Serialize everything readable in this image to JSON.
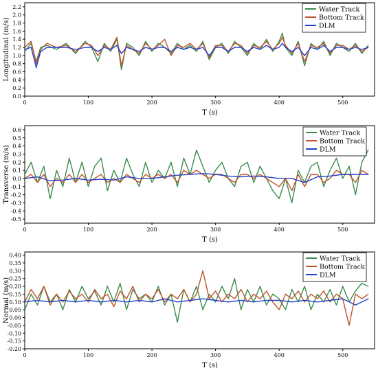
{
  "chart_data": [
    {
      "type": "line",
      "xlabel": "T (s)",
      "ylabel": "Longitudinal (m/s)",
      "xlim": [
        0,
        550
      ],
      "ylim": [
        0,
        2.3
      ],
      "xticks": [
        0,
        100,
        200,
        300,
        400,
        500
      ],
      "yticks": [
        0.0,
        0.2,
        0.4,
        0.6,
        0.8,
        1.0,
        1.2,
        1.4,
        1.6,
        1.8,
        2.0,
        2.2
      ],
      "ytick_labels": [
        "0.0",
        "0.2",
        "0.4",
        "0.6",
        "0.8",
        "1.0",
        "1.2",
        "1.4",
        "1.6",
        "1.8",
        "2.0",
        "2.2"
      ],
      "legend_position": "top-right",
      "series": [
        {
          "name": "Water Track",
          "color": "#3a8b4a",
          "x": [
            0,
            10,
            18,
            25,
            35,
            50,
            65,
            80,
            95,
            105,
            115,
            125,
            135,
            145,
            152,
            160,
            170,
            180,
            190,
            200,
            210,
            220,
            230,
            240,
            250,
            260,
            270,
            280,
            290,
            300,
            310,
            320,
            330,
            340,
            350,
            360,
            370,
            380,
            390,
            400,
            405,
            410,
            420,
            430,
            440,
            450,
            460,
            470,
            480,
            490,
            500,
            510,
            520,
            530,
            540
          ],
          "y": [
            1.1,
            1.3,
            0.85,
            1.2,
            1.25,
            1.15,
            1.3,
            1.05,
            1.35,
            1.2,
            0.85,
            1.3,
            1.1,
            1.4,
            0.65,
            1.3,
            1.2,
            1.0,
            1.35,
            1.1,
            1.3,
            1.2,
            1.05,
            1.3,
            1.15,
            1.25,
            1.1,
            1.35,
            0.9,
            1.2,
            1.3,
            1.05,
            1.35,
            1.2,
            1.0,
            1.3,
            1.15,
            1.4,
            1.1,
            1.35,
            1.55,
            1.2,
            1.0,
            1.35,
            0.75,
            1.3,
            1.15,
            1.35,
            1.0,
            1.3,
            1.2,
            1.1,
            1.3,
            1.05,
            1.25
          ]
        },
        {
          "name": "Bottom Track",
          "color": "#c0512a",
          "x": [
            0,
            10,
            18,
            25,
            35,
            50,
            65,
            80,
            95,
            105,
            115,
            125,
            135,
            145,
            152,
            160,
            170,
            180,
            190,
            200,
            210,
            220,
            230,
            240,
            250,
            260,
            270,
            280,
            290,
            300,
            310,
            320,
            330,
            340,
            350,
            360,
            370,
            380,
            390,
            400,
            405,
            410,
            420,
            430,
            440,
            450,
            460,
            470,
            480,
            490,
            500,
            510,
            520,
            530,
            540
          ],
          "y": [
            1.2,
            1.35,
            0.8,
            1.15,
            1.3,
            1.2,
            1.25,
            1.1,
            1.3,
            1.25,
            1.0,
            1.25,
            1.15,
            1.45,
            0.75,
            1.25,
            1.15,
            1.05,
            1.3,
            1.15,
            1.25,
            1.4,
            1.0,
            1.25,
            1.2,
            1.3,
            1.15,
            1.3,
            0.95,
            1.25,
            1.25,
            1.1,
            1.3,
            1.25,
            1.05,
            1.25,
            1.2,
            1.35,
            1.15,
            1.3,
            1.45,
            1.25,
            1.05,
            1.3,
            0.85,
            1.25,
            1.2,
            1.3,
            1.05,
            1.25,
            1.25,
            1.15,
            1.25,
            1.1,
            1.2
          ]
        },
        {
          "name": "DLM",
          "color": "#2340c8",
          "x": [
            0,
            10,
            18,
            25,
            35,
            50,
            65,
            80,
            95,
            105,
            115,
            125,
            135,
            145,
            152,
            160,
            170,
            180,
            190,
            200,
            210,
            220,
            230,
            240,
            250,
            260,
            270,
            280,
            290,
            300,
            310,
            320,
            330,
            340,
            350,
            360,
            370,
            380,
            390,
            400,
            405,
            410,
            420,
            430,
            440,
            450,
            460,
            470,
            480,
            490,
            500,
            510,
            520,
            530,
            540
          ],
          "y": [
            1.15,
            1.2,
            0.7,
            1.1,
            1.2,
            1.2,
            1.2,
            1.15,
            1.2,
            1.2,
            1.1,
            1.2,
            1.15,
            1.25,
            1.05,
            1.2,
            1.15,
            1.1,
            1.2,
            1.15,
            1.2,
            1.2,
            1.1,
            1.2,
            1.15,
            1.2,
            1.15,
            1.2,
            1.0,
            1.2,
            1.2,
            1.1,
            1.2,
            1.2,
            1.1,
            1.2,
            1.15,
            1.25,
            1.15,
            1.2,
            1.3,
            1.2,
            1.1,
            1.2,
            1.0,
            1.2,
            1.15,
            1.25,
            1.1,
            1.2,
            1.2,
            1.15,
            1.2,
            1.15,
            1.2
          ]
        }
      ]
    },
    {
      "type": "line",
      "xlabel": "T (s)",
      "ylabel": "Transverse (m/s)",
      "xlim": [
        0,
        550
      ],
      "ylim": [
        -0.55,
        0.65
      ],
      "xticks": [
        0,
        100,
        200,
        300,
        400,
        500
      ],
      "yticks": [
        -0.5,
        -0.4,
        -0.3,
        -0.2,
        -0.1,
        0.0,
        0.1,
        0.2,
        0.3,
        0.4,
        0.5,
        0.6
      ],
      "ytick_labels": [
        "-0.5",
        "-0.4",
        "-0.3",
        "-0.2",
        "-0.1",
        "0.0",
        "0.1",
        "0.2",
        "0.3",
        "0.4",
        "0.5",
        "0.6"
      ],
      "legend_position": "top-right",
      "series": [
        {
          "name": "Water Track",
          "color": "#3a8b4a",
          "x": [
            0,
            10,
            20,
            30,
            40,
            50,
            60,
            70,
            80,
            90,
            100,
            110,
            120,
            130,
            140,
            150,
            160,
            170,
            180,
            190,
            200,
            210,
            220,
            230,
            240,
            250,
            260,
            270,
            280,
            290,
            300,
            310,
            320,
            330,
            340,
            350,
            360,
            370,
            380,
            390,
            400,
            410,
            420,
            430,
            440,
            450,
            460,
            470,
            480,
            490,
            500,
            510,
            520,
            530,
            540
          ],
          "y": [
            0.05,
            0.2,
            -0.05,
            0.15,
            -0.25,
            0.1,
            -0.1,
            0.25,
            -0.05,
            0.2,
            -0.1,
            0.15,
            0.25,
            -0.15,
            0.1,
            -0.05,
            0.25,
            0.05,
            -0.1,
            0.2,
            -0.05,
            0.1,
            0.0,
            0.2,
            -0.1,
            0.25,
            0.05,
            0.35,
            0.15,
            -0.05,
            0.1,
            0.2,
            0.0,
            -0.1,
            0.15,
            0.2,
            -0.05,
            0.15,
            0.0,
            -0.15,
            -0.25,
            0.0,
            -0.3,
            0.1,
            -0.05,
            0.15,
            0.2,
            -0.1,
            0.1,
            0.25,
            0.0,
            0.15,
            -0.2,
            0.2,
            0.35
          ]
        },
        {
          "name": "Bottom Track",
          "color": "#c0512a",
          "x": [
            0,
            10,
            20,
            30,
            40,
            50,
            60,
            70,
            80,
            90,
            100,
            110,
            120,
            130,
            140,
            150,
            160,
            170,
            180,
            190,
            200,
            210,
            220,
            230,
            240,
            250,
            260,
            270,
            280,
            290,
            300,
            310,
            320,
            330,
            340,
            350,
            360,
            370,
            380,
            390,
            400,
            410,
            420,
            430,
            440,
            450,
            460,
            470,
            480,
            490,
            500,
            510,
            520,
            530,
            540
          ],
          "y": [
            0.0,
            0.05,
            -0.05,
            0.05,
            -0.1,
            0.0,
            -0.05,
            0.05,
            -0.05,
            0.05,
            -0.05,
            0.0,
            0.05,
            -0.05,
            0.0,
            -0.05,
            0.05,
            0.0,
            -0.05,
            0.05,
            0.0,
            0.05,
            0.0,
            0.05,
            -0.05,
            0.1,
            0.05,
            0.1,
            0.05,
            0.0,
            0.05,
            0.05,
            0.0,
            -0.05,
            0.05,
            0.05,
            0.0,
            0.05,
            0.0,
            -0.05,
            -0.1,
            0.0,
            -0.15,
            0.05,
            -0.1,
            0.05,
            0.05,
            -0.05,
            0.0,
            0.1,
            0.05,
            0.05,
            -0.05,
            0.1,
            0.05
          ]
        },
        {
          "name": "DLM",
          "color": "#2340c8",
          "x": [
            0,
            20,
            40,
            60,
            80,
            100,
            120,
            140,
            160,
            180,
            200,
            220,
            240,
            260,
            280,
            300,
            320,
            340,
            360,
            380,
            400,
            420,
            440,
            460,
            480,
            500,
            520,
            540
          ],
          "y": [
            0.0,
            0.02,
            -0.03,
            -0.02,
            0.0,
            -0.02,
            -0.01,
            -0.02,
            0.02,
            0.0,
            0.0,
            0.02,
            0.04,
            0.05,
            0.06,
            0.05,
            0.03,
            0.02,
            0.03,
            0.02,
            0.0,
            0.0,
            -0.05,
            0.02,
            0.03,
            0.05,
            0.05,
            0.05
          ]
        }
      ]
    },
    {
      "type": "line",
      "xlabel": "T (s)",
      "ylabel": "Normal (m/s)",
      "xlim": [
        0,
        550
      ],
      "ylim": [
        -0.2,
        0.42
      ],
      "xticks": [
        0,
        100,
        200,
        300,
        400,
        500
      ],
      "yticks": [
        -0.2,
        -0.15,
        -0.1,
        -0.05,
        0.0,
        0.05,
        0.1,
        0.15,
        0.2,
        0.25,
        0.3,
        0.35,
        0.4
      ],
      "ytick_labels": [
        "-0.20",
        "-0.15",
        "-0.10",
        "-0.05",
        "0.00",
        "0.05",
        "0.10",
        "0.15",
        "0.20",
        "0.25",
        "0.30",
        "0.35",
        "0.40"
      ],
      "legend_position": "top-right",
      "series": [
        {
          "name": "Water Track",
          "color": "#3a8b4a",
          "x": [
            0,
            10,
            20,
            30,
            40,
            50,
            60,
            70,
            80,
            90,
            100,
            110,
            120,
            130,
            140,
            150,
            160,
            170,
            180,
            190,
            200,
            210,
            220,
            230,
            240,
            250,
            260,
            270,
            280,
            290,
            300,
            310,
            320,
            330,
            340,
            350,
            360,
            370,
            380,
            390,
            400,
            410,
            420,
            430,
            440,
            450,
            460,
            470,
            480,
            490,
            500,
            510,
            520,
            530,
            540
          ],
          "y": [
            0.05,
            0.15,
            0.08,
            0.2,
            0.1,
            0.15,
            0.05,
            0.18,
            0.1,
            0.2,
            0.12,
            0.17,
            0.08,
            0.2,
            0.1,
            0.22,
            0.05,
            0.18,
            0.12,
            0.15,
            0.1,
            0.2,
            0.08,
            0.15,
            -0.03,
            0.18,
            0.1,
            0.2,
            0.05,
            0.15,
            0.1,
            0.2,
            0.12,
            0.25,
            0.05,
            0.18,
            0.1,
            0.2,
            0.08,
            0.15,
            0.12,
            0.05,
            0.18,
            0.1,
            0.2,
            0.05,
            0.15,
            0.1,
            0.18,
            0.08,
            0.2,
            0.1,
            0.17,
            0.22,
            0.2
          ]
        },
        {
          "name": "Bottom Track",
          "color": "#c0512a",
          "x": [
            0,
            10,
            20,
            30,
            40,
            50,
            60,
            70,
            80,
            90,
            100,
            110,
            120,
            130,
            140,
            150,
            160,
            170,
            180,
            190,
            200,
            210,
            220,
            230,
            240,
            250,
            260,
            270,
            280,
            290,
            300,
            310,
            320,
            330,
            340,
            350,
            360,
            370,
            380,
            390,
            400,
            410,
            420,
            430,
            440,
            450,
            460,
            470,
            480,
            490,
            500,
            510,
            520,
            530,
            540
          ],
          "y": [
            0.1,
            0.18,
            0.12,
            0.2,
            0.08,
            0.15,
            0.1,
            0.17,
            0.12,
            0.15,
            0.1,
            0.18,
            0.12,
            0.15,
            0.07,
            0.17,
            0.12,
            0.2,
            0.1,
            0.15,
            0.12,
            0.18,
            0.1,
            0.15,
            0.12,
            0.18,
            0.1,
            0.15,
            0.3,
            0.12,
            0.17,
            0.1,
            0.15,
            0.12,
            0.18,
            0.1,
            0.15,
            0.12,
            0.17,
            0.1,
            0.05,
            0.15,
            0.12,
            0.17,
            0.1,
            0.15,
            0.12,
            0.17,
            0.1,
            0.15,
            0.12,
            -0.05,
            0.15,
            0.12,
            0.15
          ]
        },
        {
          "name": "DLM",
          "color": "#2340c8",
          "x": [
            0,
            20,
            40,
            60,
            80,
            100,
            120,
            140,
            160,
            180,
            200,
            220,
            240,
            260,
            280,
            300,
            320,
            340,
            360,
            380,
            400,
            420,
            440,
            460,
            480,
            500,
            520,
            540
          ],
          "y": [
            0.1,
            0.11,
            0.1,
            0.11,
            0.1,
            0.11,
            0.1,
            0.11,
            0.1,
            0.11,
            0.1,
            0.12,
            0.1,
            0.11,
            0.12,
            0.11,
            0.1,
            0.11,
            0.1,
            0.11,
            0.11,
            0.1,
            0.11,
            0.1,
            0.11,
            0.12,
            0.08,
            0.12
          ]
        }
      ]
    }
  ]
}
